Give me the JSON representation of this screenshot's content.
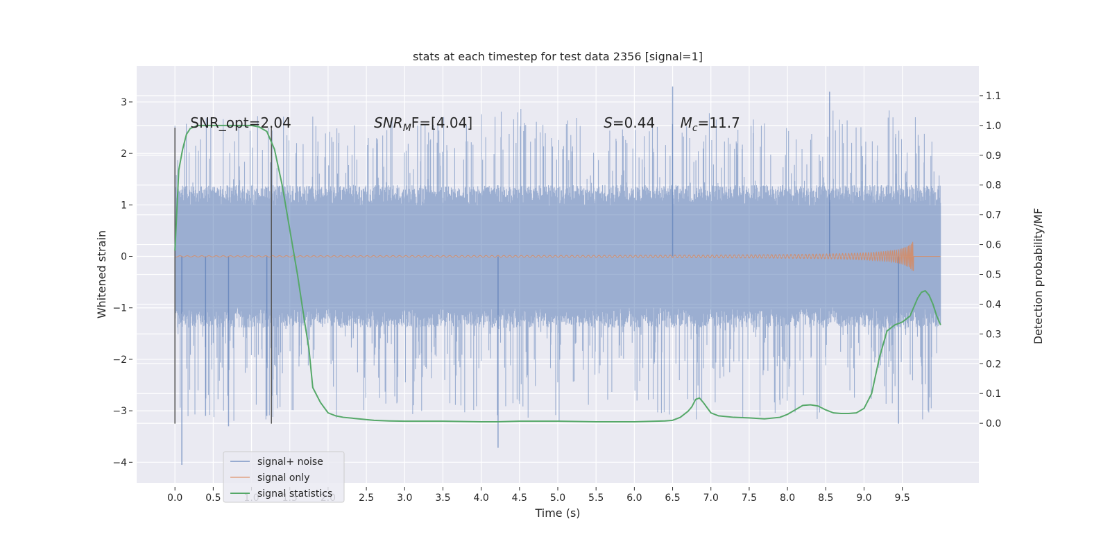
{
  "chart_data": {
    "type": "line",
    "title": "stats at each timestep for test data 2356 [signal=1]",
    "xlabel": "Time (s)",
    "ylabel_left": "Whitened strain",
    "ylabel_right": "Detection probability/MF",
    "xlim": [
      -0.5,
      10.5
    ],
    "ylim_left": [
      -4.4,
      3.7
    ],
    "ylim_right": [
      -0.2,
      1.2
    ],
    "x_ticks": [
      "0.0",
      "0.5",
      "1.0",
      "1.5",
      "2.0",
      "2.5",
      "3.0",
      "3.5",
      "4.0",
      "4.5",
      "5.0",
      "5.5",
      "6.0",
      "6.5",
      "7.0",
      "7.5",
      "8.0",
      "8.5",
      "9.0",
      "9.5"
    ],
    "x_tick_values": [
      0.0,
      0.5,
      1.0,
      1.5,
      2.0,
      2.5,
      3.0,
      3.5,
      4.0,
      4.5,
      5.0,
      5.5,
      6.0,
      6.5,
      7.0,
      7.5,
      8.0,
      8.5,
      9.0,
      9.5
    ],
    "y_ticks_left": [
      "3",
      "2",
      "1",
      "0",
      "−1",
      "−2",
      "−3",
      "−4"
    ],
    "y_tick_values_left": [
      3,
      2,
      1,
      0,
      -1,
      -2,
      -3,
      -4
    ],
    "y_ticks_right": [
      "1.1",
      "1.0",
      "0.9",
      "0.8",
      "0.7",
      "0.6",
      "0.5",
      "0.4",
      "0.3",
      "0.2",
      "0.1",
      "0.0"
    ],
    "y_tick_values_right": [
      1.1,
      1.0,
      0.9,
      0.8,
      0.7,
      0.6,
      0.5,
      0.4,
      0.3,
      0.2,
      0.1,
      0.0
    ],
    "grid": true,
    "legend_position": "lower-left",
    "series": [
      {
        "name": "signal+ noise",
        "axis": "left",
        "color": "#4c72b0",
        "noise_band": {
          "x_start": 0.0,
          "x_end": 10.0,
          "core_sigma": 0.75,
          "spike_max": 3.3,
          "spike_min": -4.05
        },
        "highlights": [
          {
            "x": 0.09,
            "y": -4.05
          },
          {
            "x": 6.5,
            "y": 3.3
          },
          {
            "x": 8.55,
            "y": 3.2
          },
          {
            "x": 4.22,
            "y": -3.72
          },
          {
            "x": 9.45,
            "y": -3.25
          },
          {
            "x": 0.7,
            "y": -3.3
          },
          {
            "x": 0.4,
            "y": -3.1
          },
          {
            "x": 1.2,
            "y": -3.1
          }
        ]
      },
      {
        "name": "signal only",
        "axis": "left",
        "color": "#dd8452",
        "chirp": {
          "x_start": 0.0,
          "x_merge": 9.65,
          "x_end": 10.0,
          "peak_amplitude": 0.33
        }
      },
      {
        "name": "signal statistics",
        "axis": "right",
        "color": "#55a868",
        "x": [
          0.0,
          0.05,
          0.1,
          0.15,
          0.2,
          0.3,
          0.4,
          0.6,
          0.8,
          1.0,
          1.1,
          1.2,
          1.3,
          1.4,
          1.5,
          1.6,
          1.7,
          1.75,
          1.8,
          1.9,
          2.0,
          2.1,
          2.2,
          2.4,
          2.6,
          2.8,
          3.0,
          3.5,
          4.0,
          4.2,
          4.5,
          5.0,
          5.5,
          6.0,
          6.4,
          6.5,
          6.6,
          6.7,
          6.75,
          6.8,
          6.85,
          6.9,
          7.0,
          7.1,
          7.3,
          7.5,
          7.7,
          7.9,
          8.0,
          8.1,
          8.2,
          8.3,
          8.4,
          8.5,
          8.6,
          8.7,
          8.8,
          8.9,
          9.0,
          9.1,
          9.2,
          9.3,
          9.4,
          9.5,
          9.6,
          9.7,
          9.75,
          9.8,
          9.85,
          9.9,
          9.95,
          10.0
        ],
        "y": [
          0.58,
          0.85,
          0.92,
          0.97,
          0.99,
          1.0,
          1.0,
          1.0,
          1.0,
          1.0,
          0.995,
          0.98,
          0.92,
          0.8,
          0.65,
          0.5,
          0.33,
          0.25,
          0.12,
          0.07,
          0.035,
          0.025,
          0.02,
          0.015,
          0.01,
          0.008,
          0.007,
          0.007,
          0.005,
          0.005,
          0.007,
          0.007,
          0.005,
          0.005,
          0.008,
          0.01,
          0.02,
          0.04,
          0.055,
          0.08,
          0.085,
          0.07,
          0.035,
          0.025,
          0.02,
          0.018,
          0.015,
          0.02,
          0.03,
          0.045,
          0.06,
          0.062,
          0.058,
          0.045,
          0.035,
          0.033,
          0.033,
          0.035,
          0.05,
          0.1,
          0.22,
          0.31,
          0.33,
          0.34,
          0.36,
          0.42,
          0.44,
          0.445,
          0.43,
          0.4,
          0.36,
          0.33
        ]
      }
    ],
    "vlines": [
      {
        "x": 0.0,
        "y_from": -3.25,
        "y_to": 2.5
      },
      {
        "x": 1.26,
        "y_from": -3.25,
        "y_to": 2.5
      }
    ],
    "annotations": [
      {
        "kind": "plain",
        "text": "SNR_opt=2.04",
        "x": 0.2,
        "y": 2.5
      },
      {
        "kind": "sub",
        "main": "SNR",
        "sub": "M",
        "rest": "F=[4.04]",
        "x": 2.6,
        "y": 2.5
      },
      {
        "kind": "italic",
        "main": "S",
        "sub": "",
        "rest": "=0.44",
        "x": 5.6,
        "y": 2.5
      },
      {
        "kind": "sub",
        "main": "M",
        "sub": "c",
        "rest": "=11.7",
        "x": 6.6,
        "y": 2.5
      }
    ]
  }
}
